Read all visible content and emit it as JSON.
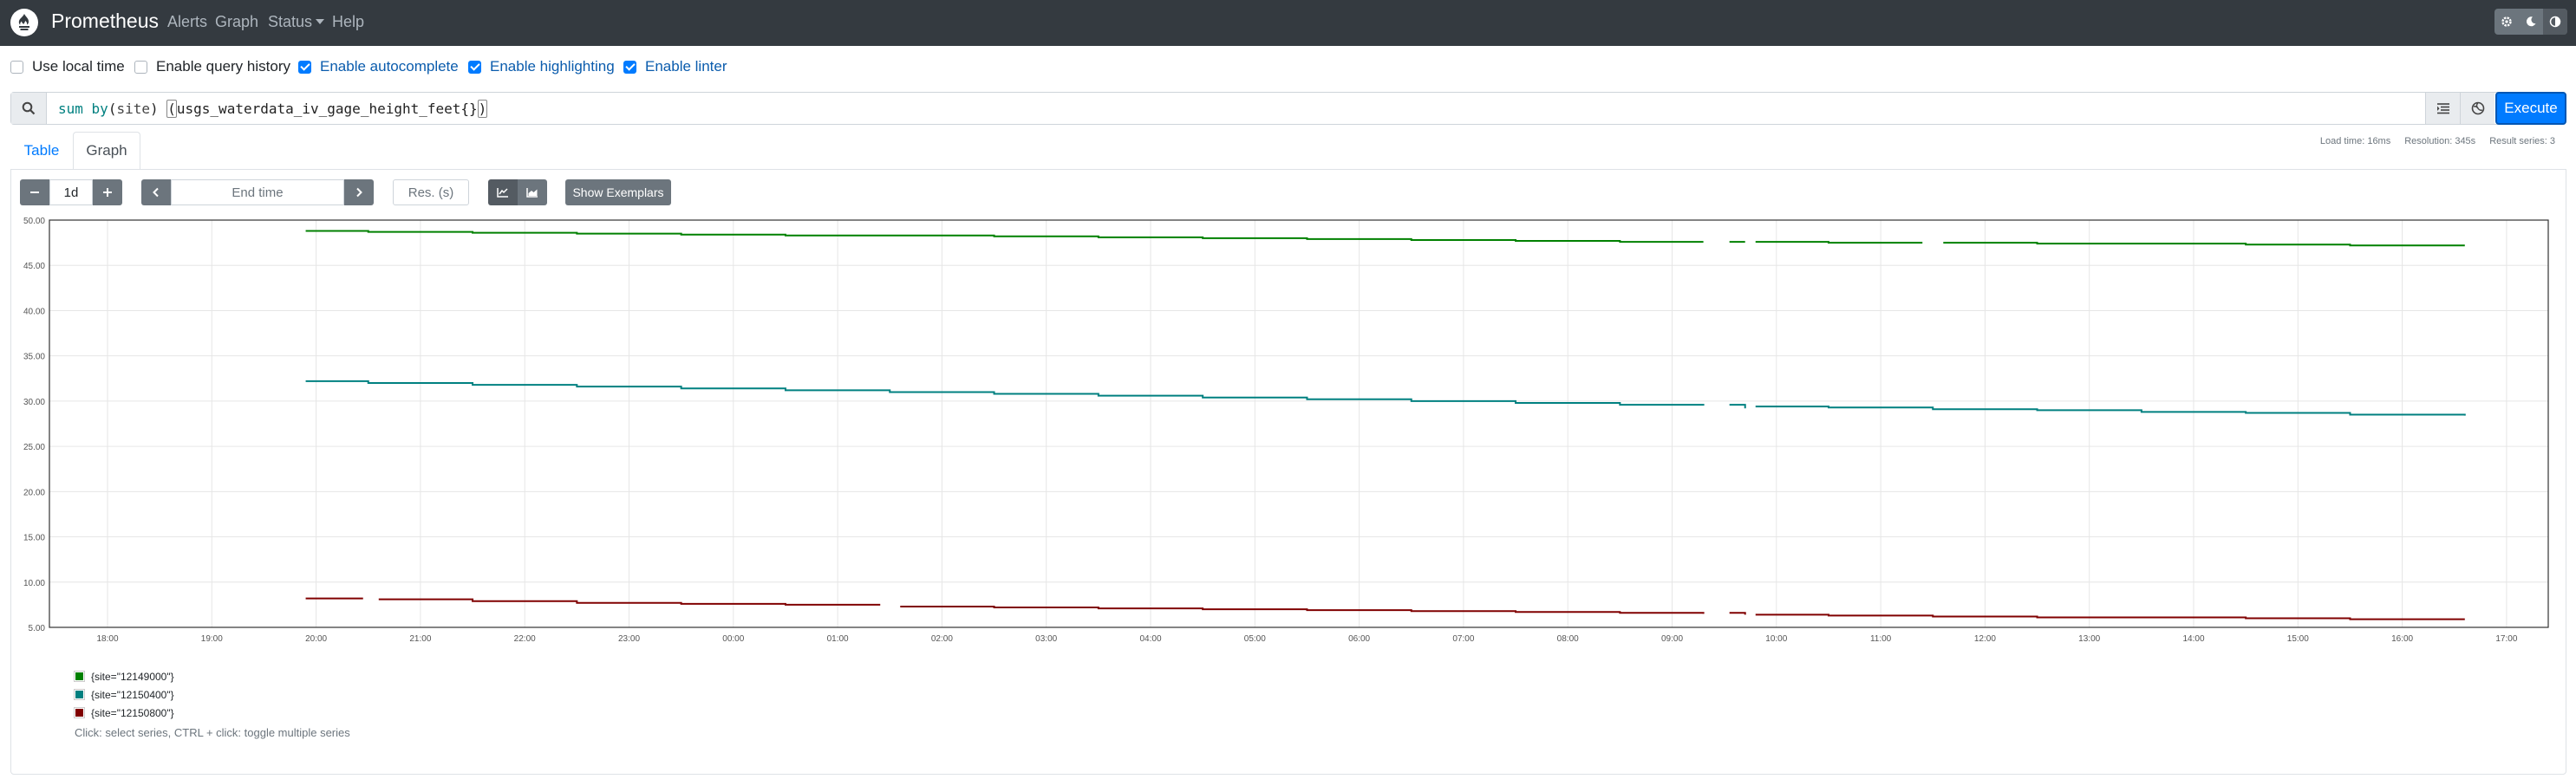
{
  "navbar": {
    "brand": "Prometheus",
    "links": [
      "Alerts",
      "Graph",
      "Status",
      "Help"
    ],
    "theme_icons": [
      "gear-icon",
      "moon-icon",
      "contrast-icon"
    ]
  },
  "options": [
    {
      "label": "Use local time",
      "checked": false
    },
    {
      "label": "Enable query history",
      "checked": false
    },
    {
      "label": "Enable autocomplete",
      "checked": true
    },
    {
      "label": "Enable highlighting",
      "checked": true
    },
    {
      "label": "Enable linter",
      "checked": true
    }
  ],
  "expression": {
    "fn": "sum",
    "by": "by",
    "label": "site",
    "metric": "usgs_waterdata_iv_gage_height_feet{}"
  },
  "execute_label": "Execute",
  "stats": {
    "load_time": "Load time: 16ms",
    "resolution": "Resolution: 345s",
    "result_series": "Result series: 3"
  },
  "tabs": {
    "table": "Table",
    "graph": "Graph"
  },
  "controls": {
    "range": "1d",
    "end_time_placeholder": "End time",
    "resolution_placeholder": "Res. (s)",
    "exemplars": "Show Exemplars"
  },
  "chart_data": {
    "type": "line",
    "ylim": [
      5,
      50
    ],
    "y_ticks": [
      "50.00",
      "45.00",
      "40.00",
      "35.00",
      "30.00",
      "25.00",
      "20.00",
      "15.00",
      "10.00",
      "5.00"
    ],
    "x_ticks": [
      "18:00",
      "19:00",
      "20:00",
      "21:00",
      "22:00",
      "23:00",
      "00:00",
      "01:00",
      "02:00",
      "03:00",
      "04:00",
      "05:00",
      "06:00",
      "07:00",
      "08:00",
      "09:00",
      "10:00",
      "11:00",
      "12:00",
      "13:00",
      "14:00",
      "15:00",
      "16:00",
      "17:00"
    ],
    "series": [
      {
        "name": "{site=\"12149000\"}",
        "color": "#008000",
        "segments": [
          {
            "x": [
              19.9,
              20.5,
              21.5,
              22.5,
              23.5,
              24.5,
              25.5,
              26.5,
              27.5,
              28.5,
              29.5,
              30.5,
              31.5,
              32.5,
              33.3
            ],
            "y": [
              48.8,
              48.7,
              48.6,
              48.5,
              48.4,
              48.3,
              48.3,
              48.2,
              48.1,
              48.0,
              47.9,
              47.8,
              47.7,
              47.6,
              47.6
            ]
          },
          {
            "x": [
              33.55,
              33.7
            ],
            "y": [
              47.6,
              47.6
            ]
          },
          {
            "x": [
              33.8,
              34.5,
              35.4
            ],
            "y": [
              47.6,
              47.5,
              47.5
            ]
          },
          {
            "x": [
              35.6,
              36.5,
              37.5,
              38.5,
              39.5,
              40.6
            ],
            "y": [
              47.5,
              47.4,
              47.4,
              47.3,
              47.2,
              47.2
            ]
          }
        ]
      },
      {
        "name": "{site=\"12150400\"}",
        "color": "#008080",
        "segments": [
          {
            "x": [
              19.9,
              20.5,
              21.5,
              22.5,
              23.5,
              24.5,
              25.5,
              26.5,
              27.5,
              28.5,
              29.5,
              30.5,
              31.5,
              32.5,
              33.3
            ],
            "y": [
              32.2,
              32.0,
              31.8,
              31.6,
              31.4,
              31.2,
              31.0,
              30.8,
              30.6,
              30.4,
              30.2,
              30.0,
              29.8,
              29.6,
              29.5
            ]
          },
          {
            "x": [
              33.55,
              33.7
            ],
            "y": [
              29.6,
              29.2
            ]
          },
          {
            "x": [
              33.8,
              34.5,
              35.5,
              36.5,
              37.5,
              38.5,
              39.5,
              40.6
            ],
            "y": [
              29.4,
              29.3,
              29.1,
              29.0,
              28.8,
              28.7,
              28.5,
              28.4
            ]
          }
        ]
      },
      {
        "name": "{site=\"12150800\"}",
        "color": "#800000",
        "segments": [
          {
            "x": [
              19.9,
              20.45
            ],
            "y": [
              8.2,
              8.2
            ]
          },
          {
            "x": [
              20.6,
              21.5,
              22.5,
              23.5,
              24.5,
              25.4
            ],
            "y": [
              8.1,
              7.9,
              7.7,
              7.6,
              7.5,
              7.4
            ]
          },
          {
            "x": [
              25.6,
              26.5,
              27.5,
              28.5,
              29.5,
              30.5,
              31.5,
              32.5,
              33.3
            ],
            "y": [
              7.3,
              7.2,
              7.1,
              7.0,
              6.9,
              6.8,
              6.7,
              6.6,
              6.5
            ]
          },
          {
            "x": [
              33.55,
              33.7
            ],
            "y": [
              6.6,
              6.4
            ]
          },
          {
            "x": [
              33.8,
              34.5,
              35.5,
              36.5,
              37.5,
              38.5,
              39.5,
              40.6
            ],
            "y": [
              6.4,
              6.3,
              6.2,
              6.1,
              6.1,
              6.0,
              5.9,
              5.9
            ]
          }
        ]
      }
    ]
  },
  "legend_hint": "Click: select series, CTRL + click: toggle multiple series"
}
